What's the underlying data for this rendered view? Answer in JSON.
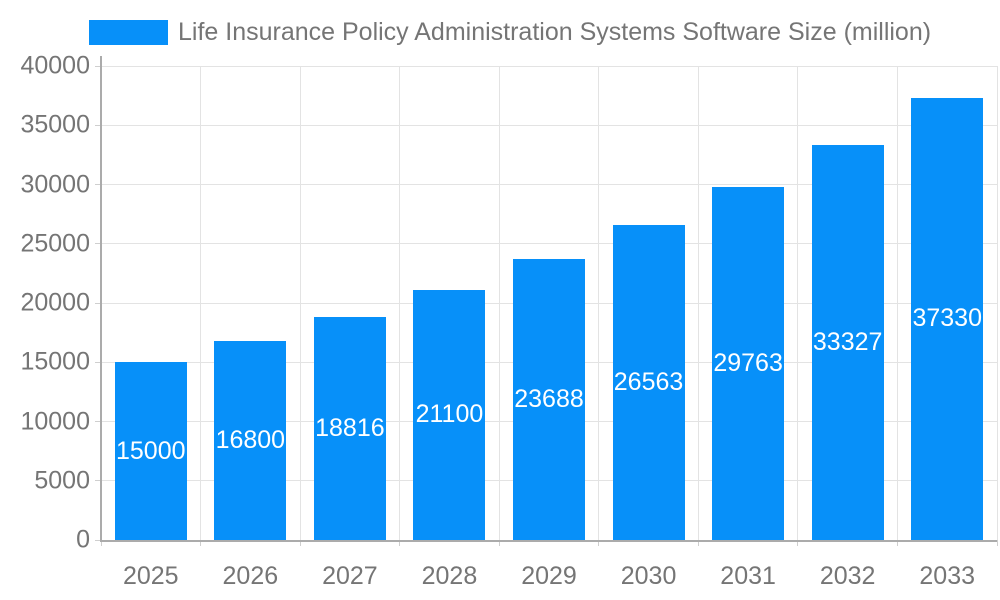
{
  "legend": {
    "label": "Life Insurance Policy Administration Systems Software Size (million)",
    "swatch_color": "#0790f9"
  },
  "chart_data": {
    "type": "bar",
    "title": "Life Insurance Policy Administration Systems Software Size (million)",
    "categories": [
      "2025",
      "2026",
      "2027",
      "2028",
      "2029",
      "2030",
      "2031",
      "2032",
      "2033"
    ],
    "values": [
      15000,
      16800,
      18816,
      21100,
      23688,
      26563,
      29763,
      33327,
      37330
    ],
    "value_labels": [
      "15000",
      "16800",
      "18816",
      "21100",
      "23688",
      "26563",
      "29763",
      "33327",
      "37330"
    ],
    "xlabel": "",
    "ylabel": "",
    "ylim": [
      0,
      40000
    ],
    "ytick_step": 5000,
    "ytick_labels": [
      "0",
      "5000",
      "10000",
      "15000",
      "20000",
      "25000",
      "30000",
      "35000",
      "40000"
    ],
    "legend_position": "top-left",
    "grid": "on",
    "colors": {
      "bar": "#0790f9",
      "value_label": "#ffffff",
      "axis_text": "#757575",
      "gridline": "#e3e3e3",
      "axis_line": "#ababab",
      "tick": "#cfcfcf",
      "background": "#ffffff"
    }
  }
}
